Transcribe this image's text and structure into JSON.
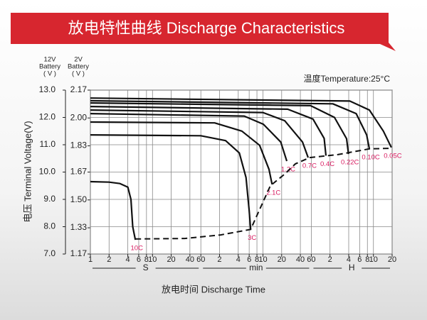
{
  "chart_data": {
    "type": "line",
    "title": "放电特性曲线 Discharge Characteristics",
    "x_axis_label": "放电时间 Discharge Time",
    "y_axis_label": "电压 Terminal Voltage(V)",
    "y_axis_header": [
      "12V",
      "Battery",
      "( V )"
    ],
    "y2_axis_header": [
      "2V",
      "Battery",
      "( V )"
    ],
    "annotation": "温度Temperature:25°C",
    "x_scale": "log",
    "xlim": [
      1,
      72000
    ],
    "xticks": [
      1,
      2,
      4,
      6,
      8,
      10,
      20,
      40,
      60,
      {
        "value": 120,
        "label": "2"
      },
      {
        "value": 240,
        "label": "4"
      },
      {
        "value": 360,
        "label": "6"
      },
      {
        "value": 480,
        "label": "8"
      },
      {
        "value": 600,
        "label": "10"
      },
      {
        "value": 1200,
        "label": "20"
      },
      {
        "value": 2400,
        "label": "40"
      },
      {
        "value": 3600,
        "label": "60"
      },
      {
        "value": 7200,
        "label": "2"
      },
      {
        "value": 14400,
        "label": "4"
      },
      {
        "value": 21600,
        "label": "6"
      },
      {
        "value": 28800,
        "label": "8"
      },
      {
        "value": 36000,
        "label": "10"
      },
      {
        "value": 72000,
        "label": "20"
      }
    ],
    "x_sections": [
      "S",
      "min",
      "H"
    ],
    "ylim": [
      7,
      13
    ],
    "yticks": [
      {
        "value": 13,
        "label": "13.0"
      },
      {
        "value": 12,
        "label": "12.0"
      },
      {
        "value": 11,
        "label": "11.0"
      },
      {
        "value": 10,
        "label": "10.0"
      },
      {
        "value": 9,
        "label": "9.0"
      },
      {
        "value": 8,
        "label": "8.0"
      },
      {
        "value": 7,
        "label": "7.0"
      }
    ],
    "y2lim": [
      1.17,
      2.17
    ],
    "y2ticks": [
      2.17,
      {
        "value": 2.0,
        "label": "2.00"
      },
      1.83,
      1.67,
      {
        "value": 1.5,
        "label": "1.50"
      },
      1.33,
      1.17
    ],
    "grid": true,
    "color": "#111111",
    "label_color": "#d81b60",
    "series": [
      {
        "name": "10C",
        "x": [
          1,
          2,
          3,
          4,
          4.5,
          4.8,
          5.3
        ],
        "values": [
          9.65,
          9.63,
          9.58,
          9.45,
          9.0,
          8.0,
          7.52
        ]
      },
      {
        "name": "3C",
        "x": [
          1,
          60,
          150,
          250,
          320,
          360,
          380
        ],
        "values": [
          11.36,
          11.33,
          11.15,
          10.7,
          9.8,
          8.6,
          7.9
        ]
      },
      {
        "name": "2.1C",
        "x": [
          1,
          100,
          275,
          530,
          750,
          840
        ],
        "values": [
          11.83,
          11.8,
          11.5,
          10.98,
          10.1,
          9.55
        ]
      },
      {
        "name": "1.2C",
        "x": [
          1,
          300,
          610,
          1160,
          1450
        ],
        "values": [
          12.14,
          12.05,
          11.75,
          11.1,
          10.4
        ]
      },
      {
        "name": "0.7C",
        "x": [
          1,
          600,
          1340,
          2600,
          3200
        ],
        "values": [
          12.27,
          12.18,
          11.88,
          11.1,
          10.53
        ]
      },
      {
        "name": "0.4C",
        "x": [
          1,
          1500,
          3830,
          5800,
          6200
        ],
        "values": [
          12.4,
          12.3,
          11.94,
          11.23,
          10.6
        ]
      },
      {
        "name": "0.22C",
        "x": [
          1,
          3500,
          8500,
          13300,
          14300
        ],
        "values": [
          12.53,
          12.43,
          12.0,
          11.22,
          10.66
        ]
      },
      {
        "name": "0.10C",
        "x": [
          1,
          8000,
          19000,
          28000,
          31000
        ],
        "values": [
          12.61,
          12.5,
          12.14,
          11.36,
          10.84
        ]
      },
      {
        "name": "0.05C",
        "x": [
          1,
          15000,
          31000,
          52000,
          70000
        ],
        "values": [
          12.71,
          12.6,
          12.27,
          11.5,
          10.9
        ]
      }
    ],
    "cutoff": {
      "x": [
        5.3,
        33,
        125,
        380,
        790,
        1350,
        2000,
        3400,
        9600,
        31000,
        70000
      ],
      "values": [
        7.55,
        7.57,
        7.7,
        7.9,
        9.5,
        9.93,
        10.3,
        10.53,
        10.64,
        10.85,
        10.87
      ]
    }
  }
}
